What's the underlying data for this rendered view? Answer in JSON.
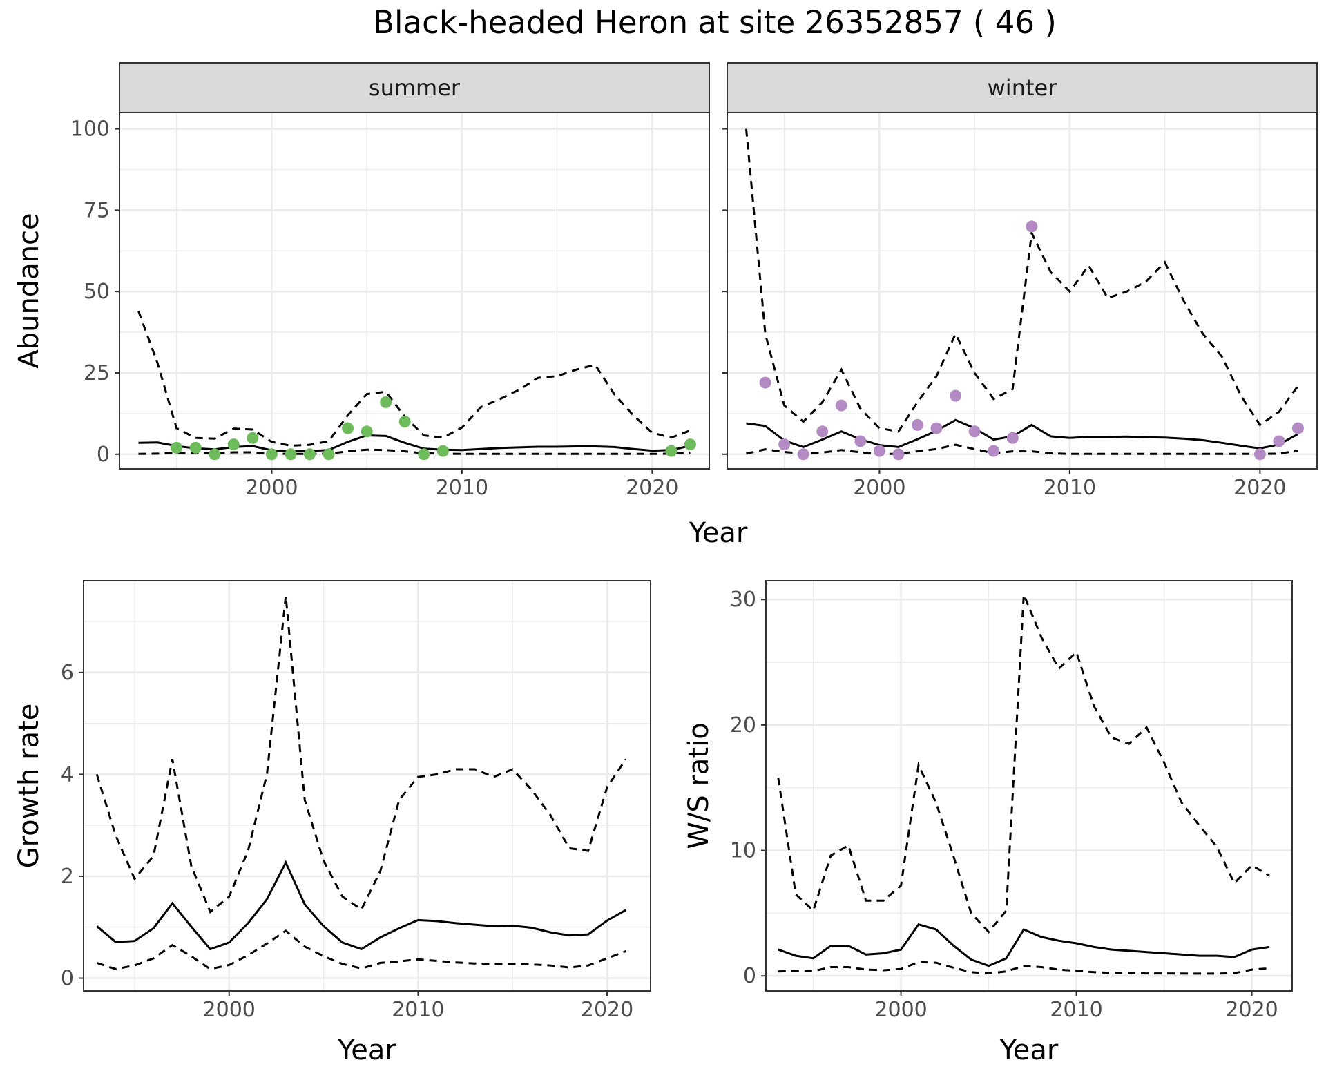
{
  "title": "Black-headed Heron at site 26352857 ( 46 )",
  "colors": {
    "summer_points": "#6dbb5a",
    "winter_points": "#b48ac4",
    "line": "#000000",
    "strip_bg": "#d9d9d9",
    "grid": "#ebebeb"
  },
  "chart_data": [
    {
      "type": "line",
      "id": "abundance",
      "facets": [
        "summer",
        "winter"
      ],
      "xlabel": "Year",
      "ylabel": "Abundance",
      "xlim": [
        1992,
        2023
      ],
      "ylim": [
        -4.5,
        105
      ],
      "x_ticks": [
        2000,
        2010,
        2020
      ],
      "y_ticks": [
        0,
        25,
        50,
        75,
        100
      ],
      "grid": true,
      "panels": [
        {
          "facet": "summer",
          "observed": {
            "x": [
              1995,
              1996,
              1997,
              1998,
              1999,
              2000,
              2001,
              2002,
              2003,
              2004,
              2005,
              2006,
              2007,
              2008,
              2009,
              2021,
              2022
            ],
            "y": [
              2,
              2,
              0,
              3,
              5,
              0,
              0,
              0,
              0,
              8,
              7,
              16,
              10,
              0,
              1,
              1,
              3
            ]
          },
          "estimate": {
            "x": [
              1993,
              1994,
              1995,
              1996,
              1997,
              1998,
              1999,
              2000,
              2001,
              2002,
              2003,
              2004,
              2005,
              2006,
              2007,
              2008,
              2009,
              2010,
              2011,
              2012,
              2013,
              2014,
              2015,
              2016,
              2017,
              2018,
              2019,
              2020,
              2021,
              2022
            ],
            "y": [
              3.5,
              3.6,
              2.5,
              1.8,
              1.5,
              2.2,
              2.5,
              1.2,
              0.9,
              1,
              1.3,
              3.8,
              5.8,
              5.6,
              3.5,
              1.7,
              1.4,
              1.3,
              1.6,
              1.9,
              2.1,
              2.3,
              2.3,
              2.4,
              2.4,
              2.2,
              1.6,
              1.1,
              1.3,
              2.6
            ]
          },
          "upper": {
            "x": [
              1993,
              1994,
              1995,
              1996,
              1997,
              1998,
              1999,
              2000,
              2001,
              2002,
              2003,
              2004,
              2005,
              2006,
              2007,
              2008,
              2009,
              2010,
              2011,
              2012,
              2013,
              2014,
              2015,
              2016,
              2017,
              2018,
              2019,
              2020,
              2021,
              2022
            ],
            "y": [
              44,
              28,
              8,
              5,
              4.8,
              7.9,
              7.6,
              3.8,
              2.6,
              2.9,
              4,
              12,
              18.5,
              19.2,
              11.5,
              5.8,
              5.1,
              8.2,
              14.5,
              17,
              19.8,
              23.5,
              24,
              26,
              27.5,
              18.5,
              12,
              6.6,
              5.1,
              7.3
            ]
          },
          "lower": {
            "x": [
              1993,
              1994,
              1995,
              1996,
              1997,
              1998,
              1999,
              2000,
              2001,
              2002,
              2003,
              2004,
              2005,
              2006,
              2007,
              2008,
              2009,
              2010,
              2011,
              2012,
              2013,
              2014,
              2015,
              2016,
              2017,
              2018,
              2019,
              2020,
              2021,
              2022
            ],
            "y": [
              0.1,
              0.2,
              0.4,
              0.3,
              0.3,
              0.6,
              0.6,
              0.2,
              0.1,
              0.1,
              0.2,
              0.9,
              1.4,
              1.3,
              0.9,
              0.3,
              0.2,
              0.1,
              0.1,
              0.1,
              0.1,
              0.1,
              0.1,
              0.1,
              0.1,
              0.1,
              0.1,
              0.1,
              0.2,
              0.5
            ]
          }
        },
        {
          "facet": "winter",
          "observed": {
            "x": [
              1994,
              1995,
              1996,
              1997,
              1998,
              1999,
              2000,
              2001,
              2002,
              2003,
              2004,
              2005,
              2006,
              2007,
              2008,
              2020,
              2021,
              2022
            ],
            "y": [
              22,
              3,
              0,
              7,
              15,
              4,
              1,
              0,
              9,
              8,
              18,
              7,
              1,
              5,
              70,
              0,
              4,
              8
            ]
          },
          "estimate": {
            "x": [
              1993,
              1994,
              1995,
              1996,
              1997,
              1998,
              1999,
              2000,
              2001,
              2002,
              2003,
              2004,
              2005,
              2006,
              2007,
              2008,
              2009,
              2010,
              2011,
              2012,
              2013,
              2014,
              2015,
              2016,
              2017,
              2018,
              2019,
              2020,
              2021,
              2022
            ],
            "y": [
              9.5,
              8.7,
              4.2,
              2.2,
              4.5,
              7,
              4.6,
              2.8,
              2.2,
              4.6,
              7.2,
              10.5,
              8,
              4.5,
              5.5,
              9,
              5.5,
              5,
              5.3,
              5.3,
              5.4,
              5.2,
              5.1,
              4.8,
              4.3,
              3.5,
              2.6,
              1.8,
              3,
              6.2
            ]
          },
          "upper": {
            "x": [
              1993,
              1994,
              1995,
              1996,
              1997,
              1998,
              1999,
              2000,
              2001,
              2002,
              2003,
              2004,
              2005,
              2006,
              2007,
              2008,
              2009,
              2010,
              2011,
              2012,
              2013,
              2014,
              2015,
              2016,
              2017,
              2018,
              2019,
              2020,
              2021,
              2022
            ],
            "y": [
              100,
              37,
              15,
              10,
              16,
              26,
              14,
              8,
              7,
              16,
              24,
              37,
              25,
              17,
              20,
              68,
              56,
              50,
              58,
              48,
              50,
              53,
              59,
              47,
              37,
              30,
              18,
              9,
              13,
              21
            ]
          },
          "lower": {
            "x": [
              1993,
              1994,
              1995,
              1996,
              1997,
              1998,
              1999,
              2000,
              2001,
              2002,
              2003,
              2004,
              2005,
              2006,
              2007,
              2008,
              2009,
              2010,
              2011,
              2012,
              2013,
              2014,
              2015,
              2016,
              2017,
              2018,
              2019,
              2020,
              2021,
              2022
            ],
            "y": [
              0.2,
              1.5,
              0.7,
              0.2,
              0.5,
              1.3,
              0.6,
              0.1,
              0.1,
              0.9,
              1.6,
              2.9,
              1.6,
              0.3,
              0.9,
              0.9,
              0.3,
              0.1,
              0.1,
              0.1,
              0.1,
              0.1,
              0.1,
              0.1,
              0.1,
              0.1,
              0.1,
              0.1,
              0.2,
              1.1
            ]
          }
        }
      ]
    },
    {
      "type": "line",
      "id": "growth",
      "xlabel": "Year",
      "ylabel": "Growth rate",
      "xlim": [
        1992.3,
        2022.3
      ],
      "ylim": [
        -0.25,
        7.8
      ],
      "x_ticks": [
        2000,
        2010,
        2020
      ],
      "y_ticks": [
        0,
        2,
        4,
        6
      ],
      "grid": true,
      "estimate": {
        "x": [
          1993,
          1994,
          1995,
          1996,
          1997,
          1998,
          1999,
          2000,
          2001,
          2002,
          2003,
          2004,
          2005,
          2006,
          2007,
          2008,
          2009,
          2010,
          2011,
          2012,
          2013,
          2014,
          2015,
          2016,
          2017,
          2018,
          2019,
          2020,
          2021
        ],
        "y": [
          1.02,
          0.71,
          0.73,
          0.98,
          1.47,
          1.01,
          0.57,
          0.7,
          1.08,
          1.55,
          2.27,
          1.45,
          1.02,
          0.7,
          0.57,
          0.8,
          0.98,
          1.14,
          1.12,
          1.08,
          1.05,
          1.02,
          1.03,
          0.99,
          0.9,
          0.84,
          0.86,
          1.13,
          1.34
        ]
      },
      "upper": {
        "x": [
          1993,
          1994,
          1995,
          1996,
          1997,
          1998,
          1999,
          2000,
          2001,
          2002,
          2003,
          2004,
          2005,
          2006,
          2007,
          2008,
          2009,
          2010,
          2011,
          2012,
          2013,
          2014,
          2015,
          2016,
          2017,
          2018,
          2019,
          2020,
          2021
        ],
        "y": [
          4,
          2.8,
          1.95,
          2.4,
          4.3,
          2.2,
          1.3,
          1.6,
          2.5,
          4,
          7.5,
          3.5,
          2.3,
          1.6,
          1.35,
          2.1,
          3.5,
          3.95,
          4,
          4.1,
          4.1,
          3.95,
          4.1,
          3.7,
          3.2,
          2.55,
          2.5,
          3.75,
          4.3
        ]
      },
      "lower": {
        "x": [
          1993,
          1994,
          1995,
          1996,
          1997,
          1998,
          1999,
          2000,
          2001,
          2002,
          2003,
          2004,
          2005,
          2006,
          2007,
          2008,
          2009,
          2010,
          2011,
          2012,
          2013,
          2014,
          2015,
          2016,
          2017,
          2018,
          2019,
          2020,
          2021
        ],
        "y": [
          0.3,
          0.18,
          0.25,
          0.39,
          0.65,
          0.43,
          0.18,
          0.26,
          0.45,
          0.68,
          0.93,
          0.62,
          0.43,
          0.28,
          0.19,
          0.3,
          0.33,
          0.37,
          0.34,
          0.31,
          0.29,
          0.28,
          0.28,
          0.27,
          0.25,
          0.21,
          0.25,
          0.39,
          0.53
        ]
      }
    },
    {
      "type": "line",
      "id": "ws_ratio",
      "xlabel": "Year",
      "ylabel": "W/S ratio",
      "xlim": [
        1992.3,
        2022.3
      ],
      "ylim": [
        -1.2,
        31.5
      ],
      "x_ticks": [
        2000,
        2010,
        2020
      ],
      "y_ticks": [
        0,
        10,
        20,
        30
      ],
      "grid": true,
      "estimate": {
        "x": [
          1993,
          1994,
          1995,
          1996,
          1997,
          1998,
          1999,
          2000,
          2001,
          2002,
          2003,
          2004,
          2005,
          2006,
          2007,
          2008,
          2009,
          2010,
          2011,
          2012,
          2013,
          2014,
          2015,
          2016,
          2017,
          2018,
          2019,
          2020,
          2021
        ],
        "y": [
          2.1,
          1.6,
          1.4,
          2.4,
          2.4,
          1.7,
          1.8,
          2.1,
          4.1,
          3.7,
          2.4,
          1.3,
          0.8,
          1.4,
          3.7,
          3.1,
          2.8,
          2.6,
          2.3,
          2.1,
          2,
          1.9,
          1.8,
          1.7,
          1.6,
          1.6,
          1.5,
          2.1,
          2.3
        ]
      },
      "upper": {
        "x": [
          1993,
          1994,
          1995,
          1996,
          1997,
          1998,
          1999,
          2000,
          2001,
          2002,
          2003,
          2004,
          2005,
          2006,
          2007,
          2008,
          2009,
          2010,
          2011,
          2012,
          2013,
          2014,
          2015,
          2016,
          2017,
          2018,
          2019,
          2020,
          2021
        ],
        "y": [
          15.8,
          6.5,
          5.2,
          9.6,
          10.4,
          6,
          6,
          7.2,
          16.8,
          13.8,
          9.5,
          5,
          3.5,
          5.2,
          30.4,
          27,
          24.5,
          25.8,
          21.5,
          19,
          18.5,
          19.8,
          17,
          13.8,
          12,
          10.3,
          7.4,
          8.8,
          8
        ]
      },
      "lower": {
        "x": [
          1993,
          1994,
          1995,
          1996,
          1997,
          1998,
          1999,
          2000,
          2001,
          2002,
          2003,
          2004,
          2005,
          2006,
          2007,
          2008,
          2009,
          2010,
          2011,
          2012,
          2013,
          2014,
          2015,
          2016,
          2017,
          2018,
          2019,
          2020,
          2021
        ],
        "y": [
          0.35,
          0.4,
          0.38,
          0.7,
          0.7,
          0.5,
          0.45,
          0.55,
          1.1,
          1.05,
          0.65,
          0.3,
          0.2,
          0.35,
          0.8,
          0.7,
          0.5,
          0.4,
          0.3,
          0.25,
          0.22,
          0.2,
          0.2,
          0.19,
          0.18,
          0.18,
          0.22,
          0.5,
          0.6
        ]
      }
    }
  ]
}
